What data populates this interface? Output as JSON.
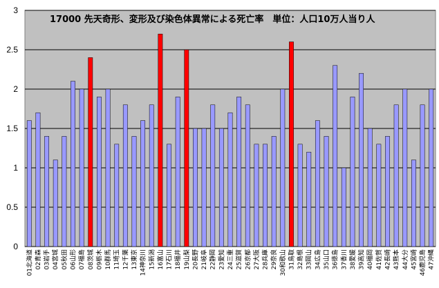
{
  "chart_data": {
    "type": "bar",
    "title": "17000 先天奇形、変形及び染色体異常による死亡率　単位：人口10万人当り人",
    "xlabel": "",
    "ylabel": "",
    "ylim": [
      0,
      3
    ],
    "yticks": [
      "0",
      "0.5",
      "1",
      "1.5",
      "2",
      "2.5",
      "3"
    ],
    "grid": true,
    "categories": [
      "01北海道",
      "02青森",
      "03岩手",
      "04宮城",
      "05秋田",
      "06山形",
      "07福島",
      "08茨城",
      "09栃木",
      "10群馬",
      "11埼玉",
      "12千葉",
      "13東京",
      "14神奈川",
      "15新潟",
      "16富山",
      "17石川",
      "18福井",
      "19山梨",
      "20長野",
      "21岐阜",
      "22静岡",
      "23愛知",
      "24三重",
      "25滋賀",
      "26京都",
      "27大阪",
      "28兵庫",
      "29奈良",
      "30和歌山",
      "31鳥取",
      "32島根",
      "33岡山",
      "34広島",
      "35山口",
      "36徳島",
      "37香川",
      "38愛媛",
      "39高知",
      "40福岡",
      "41佐賀",
      "42長崎",
      "43熊本",
      "44大分",
      "45宮崎",
      "46鹿児島",
      "47沖縄"
    ],
    "values": [
      1.6,
      1.7,
      1.4,
      1.1,
      1.4,
      2.1,
      2.0,
      2.4,
      1.9,
      2.0,
      1.3,
      1.8,
      1.4,
      1.6,
      1.8,
      2.7,
      1.3,
      1.9,
      2.5,
      1.5,
      1.5,
      1.8,
      1.5,
      1.7,
      1.9,
      1.8,
      1.3,
      1.3,
      1.4,
      2.0,
      2.6,
      1.3,
      1.2,
      1.6,
      1.4,
      2.3,
      1.0,
      1.9,
      2.2,
      1.5,
      1.3,
      1.4,
      1.8,
      2.0,
      1.1,
      1.8,
      2.0
    ],
    "highlighted": [
      "08茨城",
      "16富山",
      "19山梨",
      "31鳥取"
    ],
    "colors": {
      "bar": "#9999ff",
      "highlight": "#ff0000",
      "bar_stroke": "#000000",
      "plot_background": "#c0c0c0",
      "grid": "#000000"
    }
  }
}
